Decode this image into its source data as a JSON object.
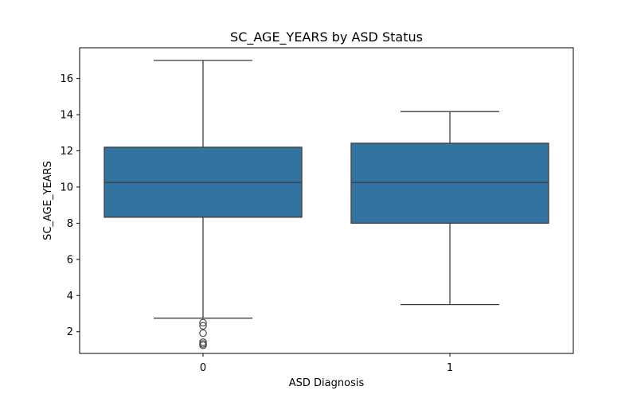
{
  "chart_data": {
    "type": "box",
    "title": "SC_AGE_YEARS by ASD Status",
    "xlabel": "ASD Diagnosis",
    "ylabel": "SC_AGE_YEARS",
    "ylim": [
      0.8,
      17.7
    ],
    "yticks": [
      2,
      4,
      6,
      8,
      10,
      12,
      14,
      16
    ],
    "ytick_labels": [
      "2",
      "4",
      "6",
      "8",
      "10",
      "12",
      "14",
      "16"
    ],
    "categories": [
      "0",
      "1"
    ],
    "boxes": [
      {
        "category": "0",
        "whisker_low": 2.75,
        "q1": 8.33,
        "median": 10.25,
        "q3": 12.2,
        "whisker_high": 17.0,
        "outliers": [
          2.5,
          2.33,
          1.92,
          1.42,
          1.33,
          1.25
        ]
      },
      {
        "category": "1",
        "whisker_low": 3.5,
        "q1": 8.0,
        "median": 10.25,
        "q3": 12.42,
        "whisker_high": 14.17,
        "outliers": []
      }
    ],
    "grid": false,
    "legend": "none",
    "colors": {
      "box_fill": "#3274a1",
      "line": "#3d3d3d",
      "frame": "#000000"
    }
  }
}
